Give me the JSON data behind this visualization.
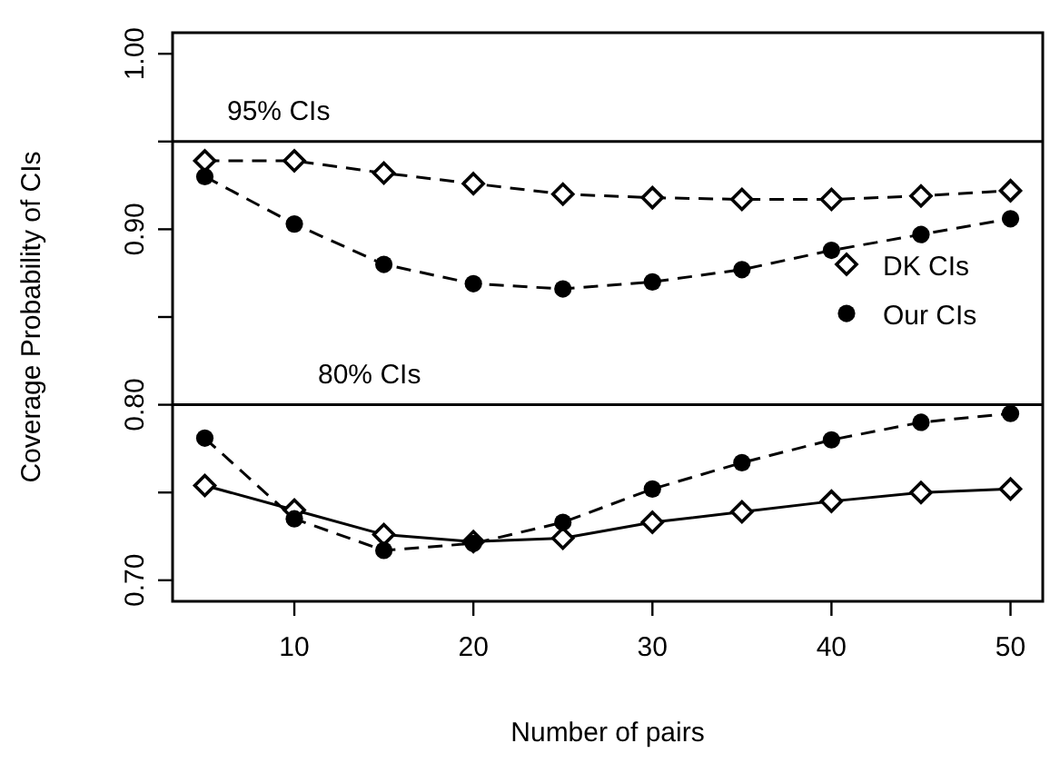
{
  "chart_data": {
    "type": "line",
    "xlabel": "Number of pairs",
    "ylabel": "Coverage Probability of CIs",
    "x": [
      5,
      10,
      15,
      20,
      25,
      30,
      35,
      40,
      45,
      50
    ],
    "series": [
      {
        "name": "DK CIs",
        "color": "#000000",
        "marker": "diamond",
        "line_style": "dashed",
        "values": [
          0.939,
          0.939,
          0.932,
          0.926,
          0.92,
          0.918,
          0.917,
          0.917,
          0.919,
          0.922
        ]
      },
      {
        "name": "Our CIs",
        "color": "#000000",
        "marker": "circle",
        "line_style": "dashed",
        "values": [
          0.93,
          0.903,
          0.88,
          0.869,
          0.866,
          0.87,
          0.877,
          0.888,
          0.897,
          0.906
        ]
      },
      {
        "color": "#000000",
        "marker": "diamond",
        "line_style": "solid",
        "values": [
          0.754,
          0.74,
          0.726,
          0.722,
          0.724,
          0.733,
          0.739,
          0.745,
          0.75,
          0.752
        ]
      },
      {
        "color": "#000000",
        "marker": "circle",
        "line_style": "dashed",
        "values": [
          0.781,
          0.735,
          0.717,
          0.721,
          0.733,
          0.752,
          0.767,
          0.78,
          0.79,
          0.795
        ]
      }
    ],
    "xlim": [
      3.2,
      51.8
    ],
    "xticks": [
      10,
      20,
      30,
      40,
      50
    ],
    "ylim": [
      0.688,
      1.012
    ],
    "yticks": [
      {
        "value": 0.7,
        "label": "0.70"
      },
      {
        "value": 0.75,
        "label": null
      },
      {
        "value": 0.8,
        "label": "0.80"
      },
      {
        "value": 0.85,
        "label": null
      },
      {
        "value": 0.9,
        "label": "0.90"
      },
      {
        "value": 0.95,
        "label": null
      },
      {
        "value": 1.0,
        "label": "1.00"
      }
    ],
    "ref_lines": [
      {
        "axis": "y",
        "value": 0.95,
        "label": "95% CIs",
        "color": "#000000"
      },
      {
        "axis": "y",
        "value": 0.8,
        "label": "80% CIs",
        "color": "#000000"
      }
    ],
    "legend": "right",
    "grid": false
  }
}
